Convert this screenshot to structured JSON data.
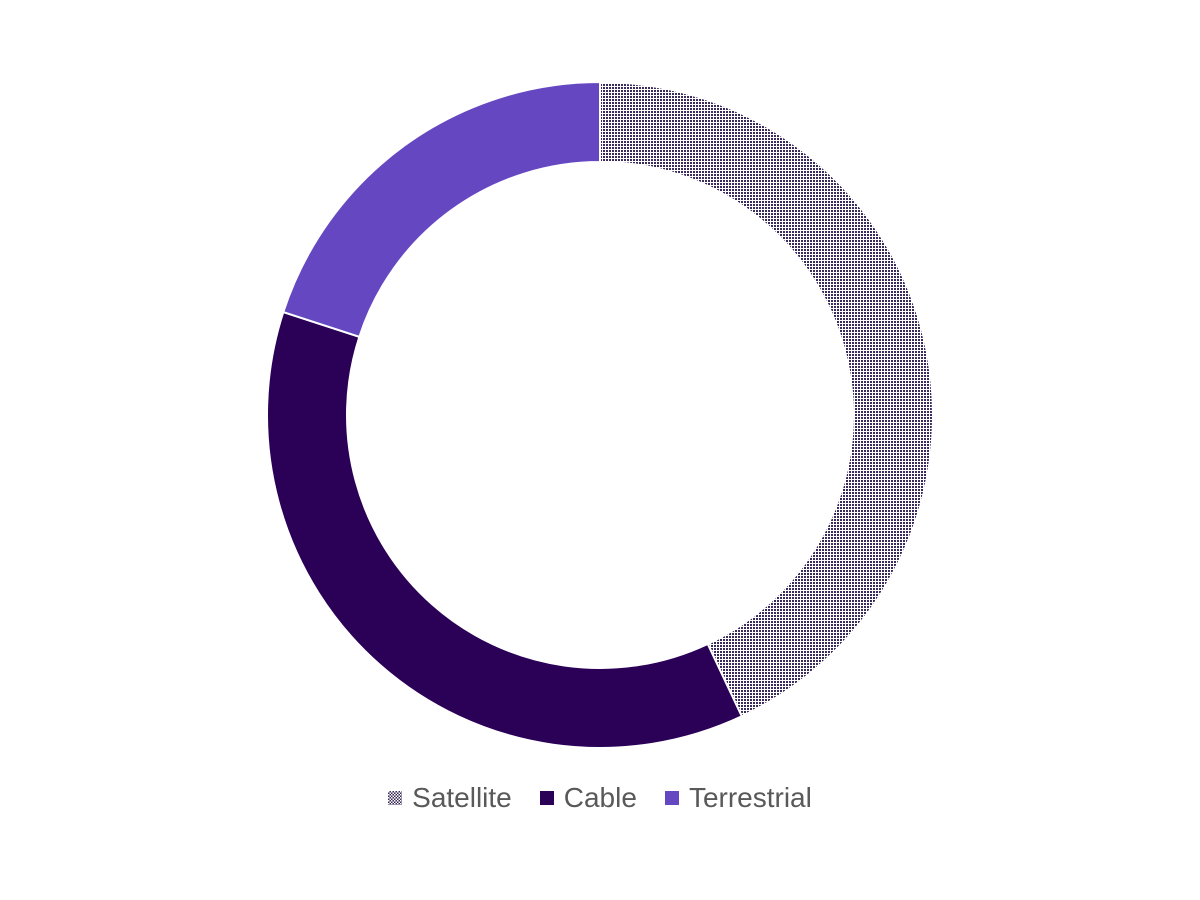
{
  "chart_data": {
    "type": "pie",
    "variant": "donut",
    "categories": [
      "Satellite",
      "Cable",
      "Terrestrial"
    ],
    "values": [
      43,
      37,
      20
    ],
    "value_unit": "percent (estimated)",
    "colors": [
      "pattern:#2b0a57/#ffffff",
      "#2b0057",
      "#6547c2"
    ],
    "legend": "bottom"
  }
}
